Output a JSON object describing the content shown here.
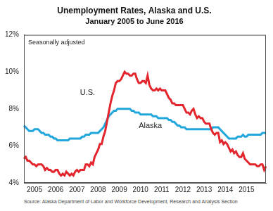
{
  "chart_data": {
    "type": "line",
    "title": "Unemployment Rates, Alaska and U.S.",
    "subtitle": "January 2005 to June 2016",
    "source": "Source: Alaska Department of Labor and Workforce Development, Research and Analysis Section",
    "annotations": [
      {
        "text": "Seasonally adjusted"
      },
      {
        "text": "U.S."
      },
      {
        "text": "Alaska"
      }
    ],
    "categories": [
      null,
      null,
      null,
      null,
      null,
      null,
      "2005",
      null,
      null,
      null,
      null,
      null,
      null,
      null,
      null,
      null,
      null,
      null,
      "2006",
      null,
      null,
      null,
      null,
      null,
      null,
      null,
      null,
      null,
      null,
      null,
      "2007",
      null,
      null,
      null,
      null,
      null,
      null,
      null,
      null,
      null,
      null,
      null,
      "2008",
      null,
      null,
      null,
      null,
      null,
      null,
      null,
      null,
      null,
      null,
      null,
      "2009",
      null,
      null,
      null,
      null,
      null,
      null,
      null,
      null,
      null,
      null,
      null,
      "2010",
      null,
      null,
      null,
      null,
      null,
      null,
      null,
      null,
      null,
      null,
      null,
      "2011",
      null,
      null,
      null,
      null,
      null,
      null,
      null,
      null,
      null,
      null,
      null,
      "2012",
      null,
      null,
      null,
      null,
      null,
      null,
      null,
      null,
      null,
      null,
      null,
      "2013",
      null,
      null,
      null,
      null,
      null,
      null,
      null,
      null,
      null,
      null,
      null,
      "2014",
      null,
      null,
      null,
      null,
      null,
      null,
      null,
      null,
      null,
      null,
      null,
      "2015",
      null,
      null,
      null,
      null,
      null,
      null,
      null,
      null,
      null,
      null,
      null
    ],
    "series": [
      {
        "name": "U.S.",
        "color": "#e3262e",
        "values": [
          5.3,
          5.4,
          5.2,
          5.2,
          5.1,
          5.0,
          5.0,
          4.9,
          5.0,
          5.0,
          5.0,
          4.9,
          4.7,
          4.8,
          4.7,
          4.7,
          4.6,
          4.6,
          4.7,
          4.7,
          4.5,
          4.4,
          4.5,
          4.4,
          4.6,
          4.5,
          4.4,
          4.5,
          4.4,
          4.6,
          4.7,
          4.6,
          4.7,
          4.7,
          4.7,
          5.0,
          5.0,
          4.9,
          5.1,
          5.0,
          5.4,
          5.6,
          5.8,
          6.1,
          6.1,
          6.5,
          6.8,
          7.3,
          7.8,
          8.3,
          8.7,
          9.0,
          9.4,
          9.5,
          9.5,
          9.6,
          9.8,
          10.0,
          9.9,
          9.9,
          9.8,
          9.8,
          9.9,
          9.9,
          9.6,
          9.4,
          9.4,
          9.5,
          9.5,
          9.4,
          9.8,
          9.3,
          9.1,
          9.0,
          9.0,
          9.1,
          9.0,
          9.1,
          9.0,
          9.0,
          9.0,
          8.8,
          8.6,
          8.5,
          8.3,
          8.3,
          8.2,
          8.2,
          8.2,
          8.2,
          8.2,
          8.0,
          7.8,
          7.8,
          7.7,
          7.9,
          8.0,
          7.7,
          7.5,
          7.6,
          7.5,
          7.5,
          7.3,
          7.2,
          7.2,
          7.2,
          6.9,
          6.7,
          6.6,
          6.7,
          6.7,
          6.2,
          6.3,
          6.1,
          6.2,
          6.1,
          5.9,
          5.7,
          5.8,
          5.6,
          5.7,
          5.5,
          5.4,
          5.4,
          5.6,
          5.3,
          5.2,
          5.1,
          5.0,
          5.0,
          5.0,
          5.0,
          4.9,
          4.9,
          5.0,
          5.0,
          4.7,
          4.9
        ]
      },
      {
        "name": "Alaska",
        "color": "#22a7dc",
        "values": [
          7.1,
          7.0,
          6.9,
          6.8,
          6.8,
          6.8,
          6.9,
          6.9,
          6.9,
          6.8,
          6.7,
          6.7,
          6.6,
          6.6,
          6.6,
          6.5,
          6.5,
          6.4,
          6.4,
          6.3,
          6.3,
          6.3,
          6.3,
          6.3,
          6.3,
          6.3,
          6.4,
          6.4,
          6.4,
          6.4,
          6.4,
          6.4,
          6.4,
          6.5,
          6.5,
          6.6,
          6.6,
          6.6,
          6.7,
          6.7,
          6.7,
          6.7,
          6.7,
          6.8,
          6.9,
          7.0,
          7.2,
          7.4,
          7.6,
          7.7,
          7.8,
          7.9,
          7.9,
          8.0,
          8.0,
          8.0,
          8.0,
          8.0,
          8.0,
          8.0,
          8.0,
          7.9,
          7.9,
          7.8,
          7.8,
          7.8,
          7.7,
          7.7,
          7.7,
          7.7,
          7.7,
          7.7,
          7.7,
          7.6,
          7.6,
          7.6,
          7.5,
          7.5,
          7.5,
          7.5,
          7.5,
          7.5,
          7.4,
          7.4,
          7.3,
          7.3,
          7.2,
          7.1,
          7.1,
          7.0,
          7.0,
          7.0,
          6.9,
          6.9,
          6.9,
          6.9,
          6.9,
          6.9,
          6.9,
          6.9,
          6.9,
          6.9,
          6.9,
          6.9,
          6.9,
          6.9,
          6.9,
          7.0,
          7.0,
          7.0,
          7.0,
          6.9,
          6.8,
          6.7,
          6.6,
          6.5,
          6.4,
          6.4,
          6.4,
          6.4,
          6.4,
          6.5,
          6.5,
          6.5,
          6.6,
          6.5,
          6.5,
          6.6,
          6.6,
          6.6,
          6.6,
          6.6,
          6.6,
          6.6,
          6.6,
          6.7,
          6.7,
          6.7
        ]
      }
    ],
    "ylim": [
      4,
      12
    ],
    "yticks": [
      {
        "value": 4,
        "label": "4%"
      },
      {
        "value": 6,
        "label": "6%"
      },
      {
        "value": 8,
        "label": "8%"
      },
      {
        "value": 10,
        "label": "10%"
      },
      {
        "value": 12,
        "label": "12%"
      }
    ],
    "grid": false,
    "tick_labels": true
  }
}
